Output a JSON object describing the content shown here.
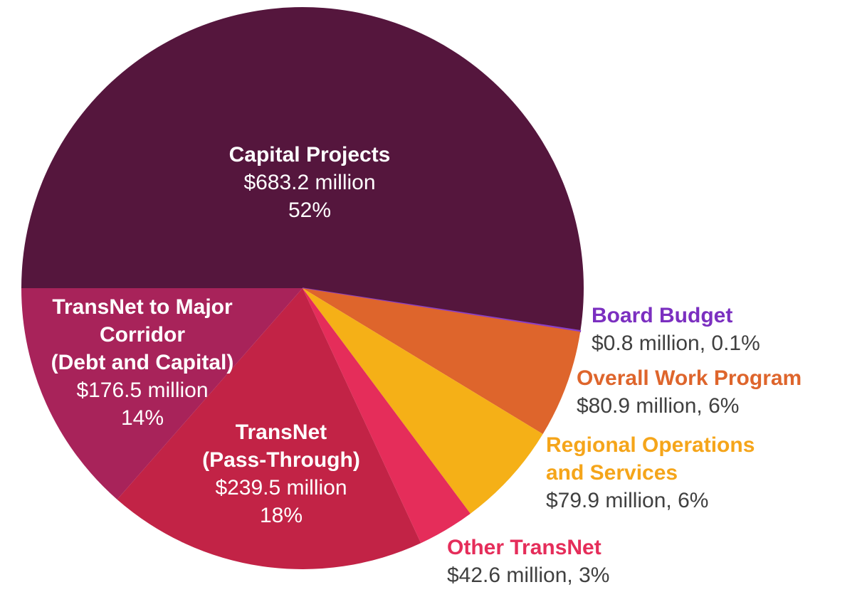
{
  "chart_data": {
    "type": "pie",
    "start_angle": "9 o'clock, clockwise",
    "slices": [
      {
        "name": "Capital Projects",
        "value": 683.2,
        "value_label": "$683.2 million",
        "pct_label": "52%",
        "color": "#55163d"
      },
      {
        "name": "Board Budget",
        "value": 0.8,
        "value_label": "$0.8 million, 0.1%",
        "color": "#8a3fc9",
        "label_color": "#7b2fc0"
      },
      {
        "name": "Overall Work Program",
        "value": 80.9,
        "value_label": "$80.9 million, 6%",
        "color": "#de652c",
        "label_color": "#de652c"
      },
      {
        "name_lines": [
          "Regional Operations",
          "and Services"
        ],
        "name": "Regional Operations and Services",
        "value": 79.9,
        "value_label": "$79.9 million, 6%",
        "color": "#f5b017",
        "label_color": "#f5a51a"
      },
      {
        "name": "Other TransNet",
        "value": 42.6,
        "value_label": "$42.6 million, 3%",
        "color": "#e52d5a",
        "label_color": "#e52d5a"
      },
      {
        "name_lines": [
          "TransNet",
          "(Pass-Through)"
        ],
        "name": "TransNet (Pass-Through)",
        "value": 239.5,
        "value_label": "$239.5 million",
        "pct_label": "18%",
        "color": "#c22346"
      },
      {
        "name_lines": [
          "TransNet to Major",
          "Corridor",
          "(Debt and Capital)"
        ],
        "name": "TransNet to Major Corridor (Debt and Capital)",
        "value": 176.5,
        "value_label": "$176.5 million",
        "pct_label": "14%",
        "color": "#a8235a"
      }
    ]
  }
}
